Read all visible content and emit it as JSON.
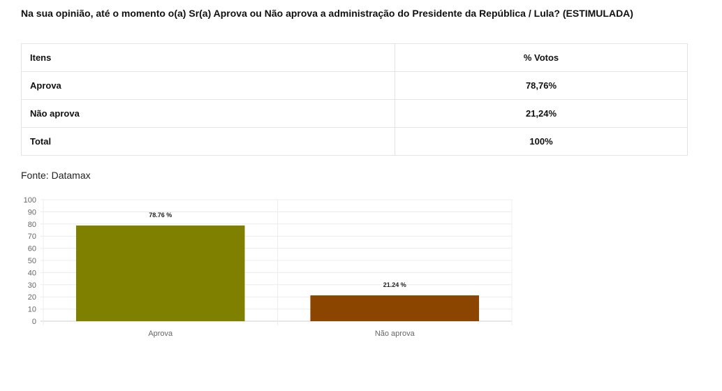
{
  "title": "Na sua opinião, até o momento o(a) Sr(a) Aprova ou Não aprova a administração do Presidente da República / Lula? (ESTIMULADA)",
  "table": {
    "headers": [
      "Itens",
      "% Votos"
    ],
    "rows": [
      [
        "Aprova",
        "78,76%"
      ],
      [
        "Não aprova",
        "21,24%"
      ],
      [
        "Total",
        "100%"
      ]
    ]
  },
  "source": "Fonte: Datamax",
  "chart_data": {
    "type": "bar",
    "categories": [
      "Aprova",
      "Não aprova"
    ],
    "values": [
      78.76,
      21.24
    ],
    "data_labels": [
      "78.76 %",
      "21.24 %"
    ],
    "colors": [
      "#808000",
      "#8b4500"
    ],
    "ylim": [
      0,
      100
    ],
    "yticks": [
      0,
      10,
      20,
      30,
      40,
      50,
      60,
      70,
      80,
      90,
      100
    ],
    "grid": true,
    "title": "",
    "xlabel": "",
    "ylabel": ""
  }
}
